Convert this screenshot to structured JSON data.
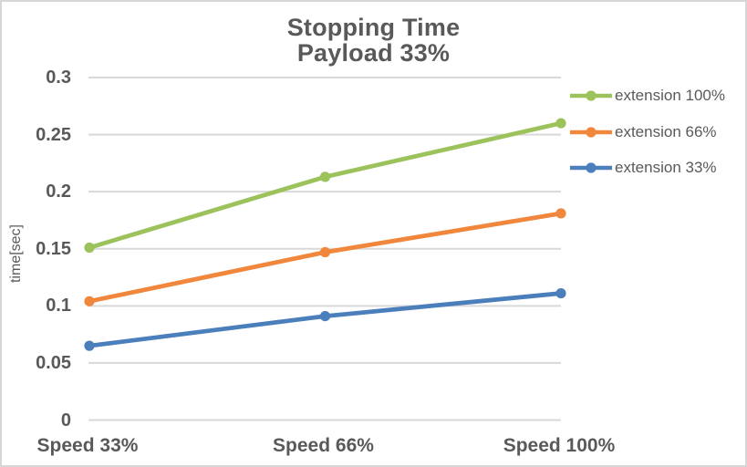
{
  "chart_data": {
    "type": "line",
    "title": "Stopping Time",
    "subtitle": "Payload 33%",
    "ylabel": "time[sec]",
    "xlabel": "",
    "categories": [
      "Speed 33%",
      "Speed 66%",
      "Speed 100%"
    ],
    "series": [
      {
        "name": "extension 100%",
        "color": "#9CC25C",
        "values": [
          0.151,
          0.213,
          0.26
        ]
      },
      {
        "name": "extension 66%",
        "color": "#F0873C",
        "values": [
          0.104,
          0.147,
          0.181
        ]
      },
      {
        "name": "extension 33%",
        "color": "#4B7FBC",
        "values": [
          0.065,
          0.091,
          0.111
        ]
      }
    ],
    "ylim": [
      0,
      0.3
    ],
    "ytick_step": 0.05,
    "ytick_labels": [
      "0",
      "0.05",
      "0.1",
      "0.15",
      "0.2",
      "0.25",
      "0.3"
    ],
    "grid": true,
    "legend_position": "right",
    "marker": "circle",
    "colors": {
      "text": "#595959",
      "gridline": "#D9D9D9",
      "chart_border": "#D6D6D6",
      "background": "#FFFFFF"
    }
  }
}
